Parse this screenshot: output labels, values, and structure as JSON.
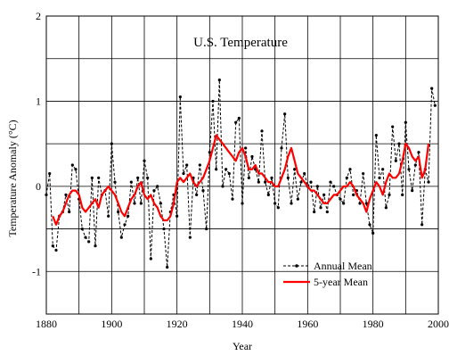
{
  "chart_data": {
    "type": "line",
    "title": "U.S. Temperature",
    "xlabel": "Year",
    "ylabel": "Temperature Anomaly (°C)",
    "xlim": [
      1880,
      2000
    ],
    "ylim": [
      -1.5,
      2
    ],
    "xticks": [
      1880,
      1900,
      1920,
      1940,
      1960,
      1980,
      2000
    ],
    "yticks": [
      -1,
      0,
      1,
      2
    ],
    "grid": true,
    "legend": "bottom-right",
    "series": [
      {
        "name": "Annual Mean",
        "style": "dashed-dot",
        "color": "#000000",
        "x": [
          1880,
          1881,
          1882,
          1883,
          1884,
          1885,
          1886,
          1887,
          1888,
          1889,
          1890,
          1891,
          1892,
          1893,
          1894,
          1895,
          1896,
          1897,
          1898,
          1899,
          1900,
          1901,
          1902,
          1903,
          1904,
          1905,
          1906,
          1907,
          1908,
          1909,
          1910,
          1911,
          1912,
          1913,
          1914,
          1915,
          1916,
          1917,
          1918,
          1919,
          1920,
          1921,
          1922,
          1923,
          1924,
          1925,
          1926,
          1927,
          1928,
          1929,
          1930,
          1931,
          1932,
          1933,
          1934,
          1935,
          1936,
          1937,
          1938,
          1939,
          1940,
          1941,
          1942,
          1943,
          1944,
          1945,
          1946,
          1947,
          1948,
          1949,
          1950,
          1951,
          1952,
          1953,
          1954,
          1955,
          1956,
          1957,
          1958,
          1959,
          1960,
          1961,
          1962,
          1963,
          1964,
          1965,
          1966,
          1967,
          1968,
          1969,
          1970,
          1971,
          1972,
          1973,
          1974,
          1975,
          1976,
          1977,
          1978,
          1979,
          1980,
          1981,
          1982,
          1983,
          1984,
          1985,
          1986,
          1987,
          1988,
          1989,
          1990,
          1991,
          1992,
          1993,
          1994,
          1995,
          1996,
          1997,
          1998,
          1999
        ],
        "y": [
          -0.1,
          0.15,
          -0.7,
          -0.75,
          -0.35,
          -0.3,
          -0.1,
          -0.3,
          0.25,
          0.2,
          -0.15,
          -0.5,
          -0.6,
          -0.65,
          0.1,
          -0.7,
          0.1,
          -0.1,
          -0.05,
          -0.35,
          0.5,
          0.05,
          -0.3,
          -0.6,
          -0.45,
          -0.35,
          0.05,
          -0.2,
          0.1,
          -0.2,
          0.3,
          0.1,
          -0.85,
          -0.05,
          0.0,
          -0.2,
          -0.5,
          -0.95,
          -0.3,
          -0.1,
          -0.35,
          1.05,
          0.15,
          0.25,
          -0.6,
          0.1,
          -0.1,
          0.25,
          -0.05,
          -0.5,
          0.4,
          1.0,
          0.2,
          1.25,
          0.0,
          0.2,
          0.15,
          -0.15,
          0.75,
          0.8,
          -0.2,
          0.45,
          0.1,
          0.35,
          0.2,
          0.05,
          0.65,
          0.05,
          -0.1,
          0.1,
          -0.2,
          -0.25,
          0.45,
          0.85,
          0.1,
          -0.2,
          0.2,
          -0.15,
          0.05,
          0.15,
          0.0,
          0.05,
          -0.3,
          0.0,
          -0.25,
          -0.1,
          -0.3,
          0.05,
          0.0,
          -0.1,
          -0.15,
          -0.2,
          0.1,
          0.2,
          -0.1,
          -0.05,
          -0.2,
          0.15,
          -0.2,
          -0.45,
          -0.55,
          0.6,
          0.1,
          0.2,
          -0.25,
          -0.1,
          0.7,
          0.3,
          0.5,
          -0.1,
          0.75,
          0.2,
          -0.05,
          0.25,
          0.4,
          -0.45,
          0.2,
          0.05,
          1.15,
          0.95
        ]
      },
      {
        "name": "5-year Mean",
        "style": "solid",
        "color": "#ff0000",
        "x": [
          1882,
          1883,
          1884,
          1885,
          1886,
          1887,
          1888,
          1889,
          1890,
          1891,
          1892,
          1893,
          1894,
          1895,
          1896,
          1897,
          1898,
          1899,
          1900,
          1901,
          1902,
          1903,
          1904,
          1905,
          1906,
          1907,
          1908,
          1909,
          1910,
          1911,
          1912,
          1913,
          1914,
          1915,
          1916,
          1917,
          1918,
          1919,
          1920,
          1921,
          1922,
          1923,
          1924,
          1925,
          1926,
          1927,
          1928,
          1929,
          1930,
          1931,
          1932,
          1933,
          1934,
          1935,
          1936,
          1937,
          1938,
          1939,
          1940,
          1941,
          1942,
          1943,
          1944,
          1945,
          1946,
          1947,
          1948,
          1949,
          1950,
          1951,
          1952,
          1953,
          1954,
          1955,
          1956,
          1957,
          1958,
          1959,
          1960,
          1961,
          1962,
          1963,
          1964,
          1965,
          1966,
          1967,
          1968,
          1969,
          1970,
          1971,
          1972,
          1973,
          1974,
          1975,
          1976,
          1977,
          1978,
          1979,
          1980,
          1981,
          1982,
          1983,
          1984,
          1985,
          1986,
          1987,
          1988,
          1989,
          1990,
          1991,
          1992,
          1993,
          1994,
          1995,
          1996,
          1997
        ],
        "y": [
          -0.35,
          -0.45,
          -0.35,
          -0.3,
          -0.2,
          -0.1,
          -0.05,
          -0.05,
          -0.1,
          -0.25,
          -0.3,
          -0.25,
          -0.2,
          -0.15,
          -0.25,
          -0.1,
          -0.05,
          0.0,
          -0.05,
          -0.1,
          -0.2,
          -0.3,
          -0.35,
          -0.25,
          -0.15,
          -0.1,
          0.0,
          0.05,
          -0.1,
          -0.15,
          -0.1,
          -0.2,
          -0.25,
          -0.35,
          -0.4,
          -0.4,
          -0.35,
          -0.2,
          0.05,
          0.1,
          0.05,
          0.1,
          0.15,
          0.05,
          0.0,
          0.05,
          0.1,
          0.2,
          0.3,
          0.45,
          0.6,
          0.55,
          0.5,
          0.45,
          0.4,
          0.35,
          0.3,
          0.4,
          0.45,
          0.35,
          0.2,
          0.2,
          0.25,
          0.15,
          0.15,
          0.1,
          0.05,
          0.05,
          0.0,
          0.0,
          0.1,
          0.2,
          0.35,
          0.45,
          0.3,
          0.15,
          0.1,
          0.05,
          0.0,
          -0.05,
          -0.05,
          -0.1,
          -0.15,
          -0.2,
          -0.2,
          -0.15,
          -0.1,
          -0.1,
          -0.05,
          0.0,
          0.0,
          0.05,
          0.0,
          -0.1,
          -0.15,
          -0.2,
          -0.3,
          -0.15,
          -0.05,
          0.05,
          0.0,
          -0.1,
          0.05,
          0.15,
          0.1,
          0.1,
          0.15,
          0.3,
          0.5,
          0.45,
          0.35,
          0.3,
          0.35,
          0.1,
          0.2,
          0.5
        ]
      }
    ]
  }
}
